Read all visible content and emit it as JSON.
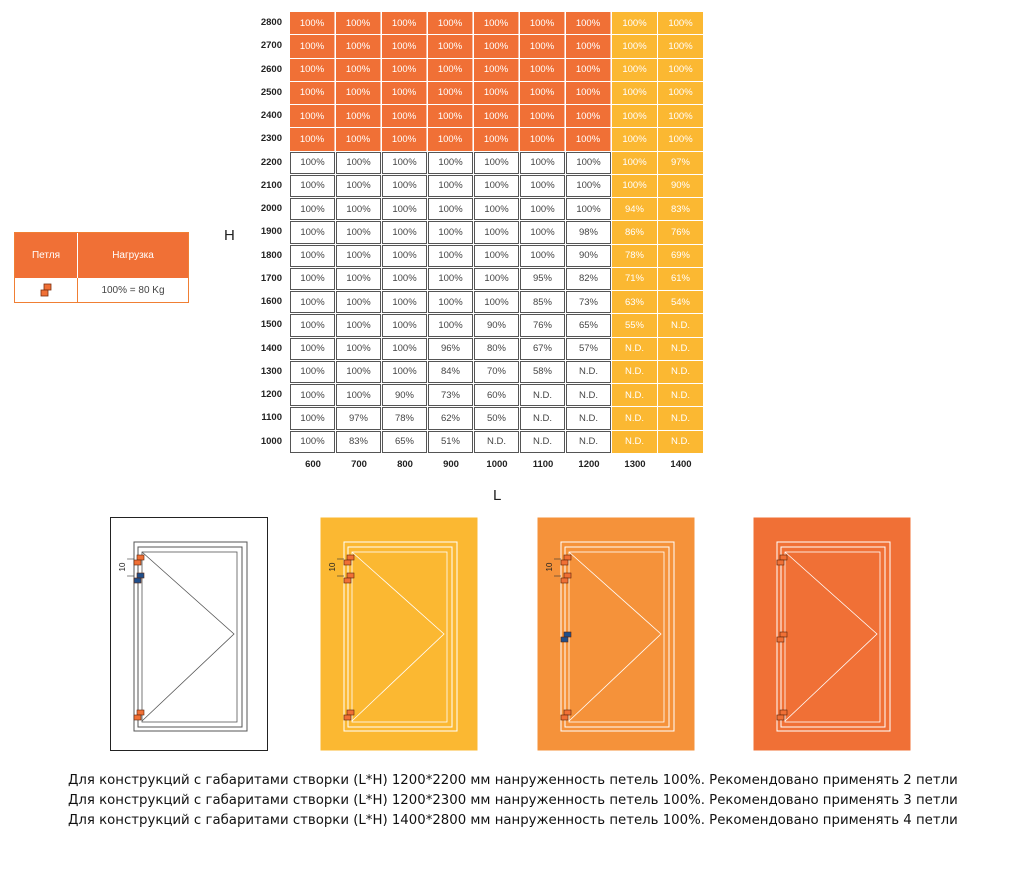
{
  "legend": {
    "col1": "Петля",
    "col2": "Нагрузка",
    "value": "100% = 80 Kg"
  },
  "axis": {
    "h": "H",
    "l": "L"
  },
  "chart_data": {
    "type": "table",
    "heights": [
      2800,
      2700,
      2600,
      2500,
      2400,
      2300,
      2200,
      2100,
      2000,
      1900,
      1800,
      1700,
      1600,
      1500,
      1400,
      1300,
      1200,
      1100,
      1000
    ],
    "widths": [
      600,
      700,
      800,
      900,
      1000,
      1100,
      1200,
      1300,
      1400
    ],
    "rows": [
      [
        "100%",
        "100%",
        "100%",
        "100%",
        "100%",
        "100%",
        "100%",
        "100%",
        "100%"
      ],
      [
        "100%",
        "100%",
        "100%",
        "100%",
        "100%",
        "100%",
        "100%",
        "100%",
        "100%"
      ],
      [
        "100%",
        "100%",
        "100%",
        "100%",
        "100%",
        "100%",
        "100%",
        "100%",
        "100%"
      ],
      [
        "100%",
        "100%",
        "100%",
        "100%",
        "100%",
        "100%",
        "100%",
        "100%",
        "100%"
      ],
      [
        "100%",
        "100%",
        "100%",
        "100%",
        "100%",
        "100%",
        "100%",
        "100%",
        "100%"
      ],
      [
        "100%",
        "100%",
        "100%",
        "100%",
        "100%",
        "100%",
        "100%",
        "100%",
        "100%"
      ],
      [
        "100%",
        "100%",
        "100%",
        "100%",
        "100%",
        "100%",
        "100%",
        "100%",
        "97%"
      ],
      [
        "100%",
        "100%",
        "100%",
        "100%",
        "100%",
        "100%",
        "100%",
        "100%",
        "90%"
      ],
      [
        "100%",
        "100%",
        "100%",
        "100%",
        "100%",
        "100%",
        "100%",
        "94%",
        "83%"
      ],
      [
        "100%",
        "100%",
        "100%",
        "100%",
        "100%",
        "100%",
        "98%",
        "86%",
        "76%"
      ],
      [
        "100%",
        "100%",
        "100%",
        "100%",
        "100%",
        "100%",
        "90%",
        "78%",
        "69%"
      ],
      [
        "100%",
        "100%",
        "100%",
        "100%",
        "100%",
        "95%",
        "82%",
        "71%",
        "61%"
      ],
      [
        "100%",
        "100%",
        "100%",
        "100%",
        "100%",
        "85%",
        "73%",
        "63%",
        "54%"
      ],
      [
        "100%",
        "100%",
        "100%",
        "100%",
        "90%",
        "76%",
        "65%",
        "55%",
        "N.D."
      ],
      [
        "100%",
        "100%",
        "100%",
        "96%",
        "80%",
        "67%",
        "57%",
        "N.D.",
        "N.D."
      ],
      [
        "100%",
        "100%",
        "100%",
        "84%",
        "70%",
        "58%",
        "N.D.",
        "N.D.",
        "N.D."
      ],
      [
        "100%",
        "100%",
        "90%",
        "73%",
        "60%",
        "N.D.",
        "N.D.",
        "N.D.",
        "N.D."
      ],
      [
        "100%",
        "97%",
        "78%",
        "62%",
        "50%",
        "N.D.",
        "N.D.",
        "N.D.",
        "N.D."
      ],
      [
        "100%",
        "83%",
        "65%",
        "51%",
        "N.D.",
        "N.D.",
        "N.D.",
        "N.D.",
        "N.D."
      ]
    ],
    "colors": {
      "orange": "#f07036",
      "yellow": "#fbb832",
      "white": "#ffffff"
    }
  },
  "windows": {
    "dim_label": "10",
    "colors": [
      "#ffffff",
      "#fbb832",
      "#f5923a",
      "#f07036"
    ]
  },
  "captions": [
    "Для конструкций с габаритами створки  (L*H) 1200*2200 мм нанруженность петель 100%. Рекомендовано применять 2 петли",
    "Для конструкций с габаритами створки  (L*H) 1200*2300 мм нанруженность петель 100%. Рекомендовано применять 3 петли",
    "Для конструкций с габаритами створки  (L*H) 1400*2800 мм нанруженность петель 100%. Рекомендовано применять 4 петли"
  ]
}
